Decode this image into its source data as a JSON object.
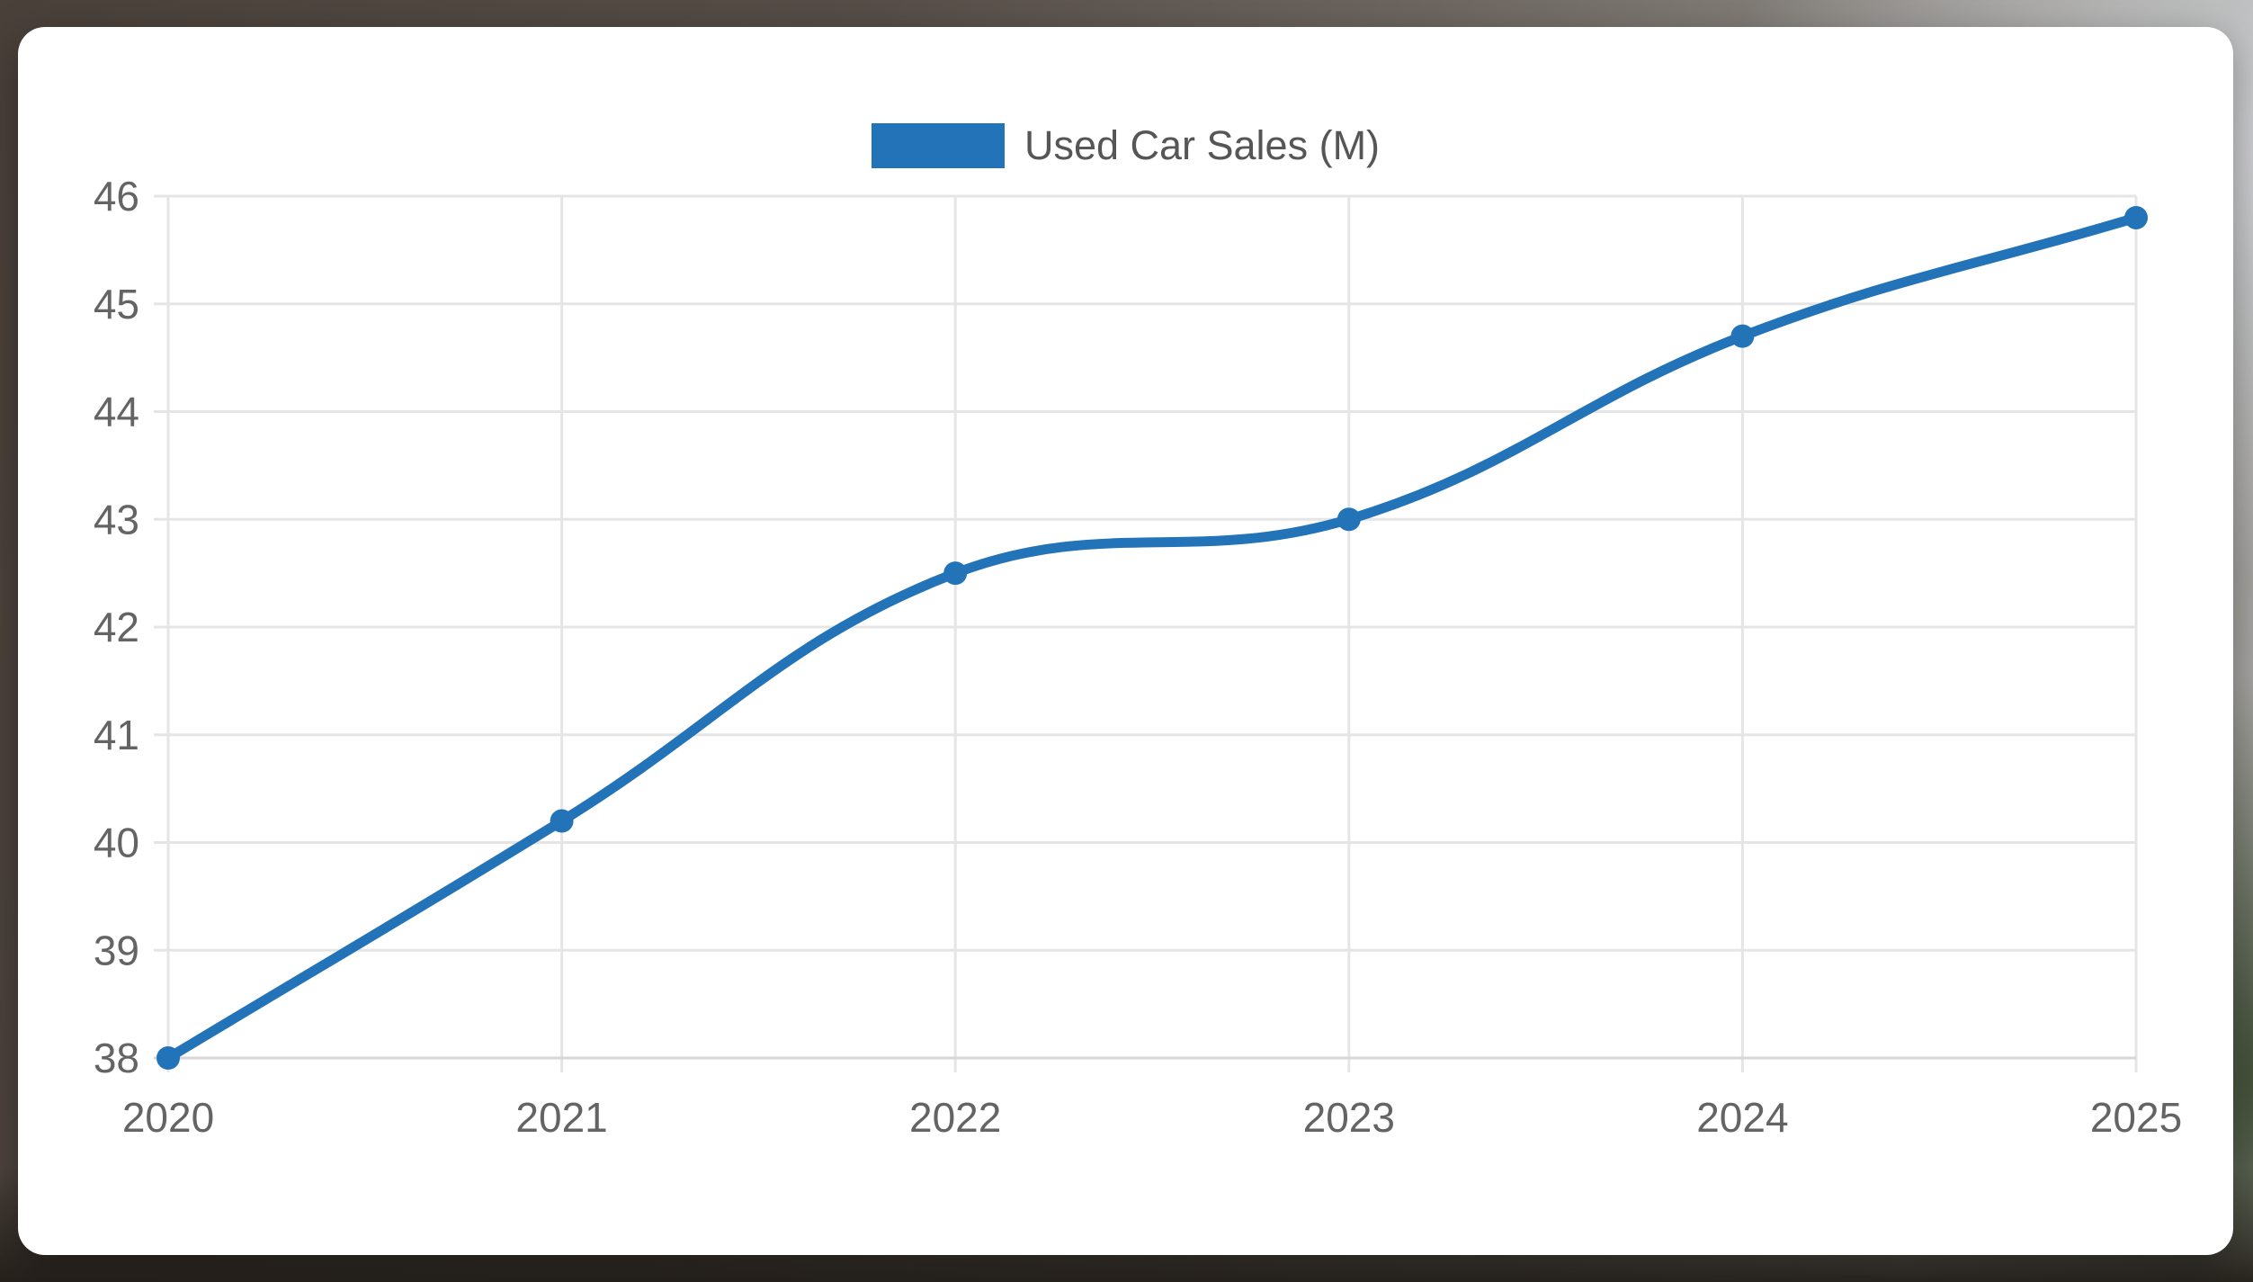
{
  "legend": {
    "label": "Used Car Sales (M)",
    "swatch_color": "#2273b8"
  },
  "chart_data": {
    "type": "line",
    "title": "",
    "xlabel": "",
    "ylabel": "",
    "categories": [
      "2020",
      "2021",
      "2022",
      "2023",
      "2024",
      "2025"
    ],
    "series": [
      {
        "name": "Used Car Sales (M)",
        "color": "#2273b8",
        "values": [
          38.0,
          40.2,
          42.5,
          43.0,
          44.7,
          45.8
        ]
      }
    ],
    "ylim": [
      38,
      46
    ],
    "y_ticks": [
      46,
      45,
      44,
      43,
      42,
      41,
      40,
      39,
      38
    ],
    "grid": true,
    "legend_position": "top",
    "line_tension": 0.4,
    "line_width": 11,
    "point_radius": 13
  },
  "style": {
    "grid_color": "#e5e5e5",
    "axis_line_color": "#d7d7d7",
    "tick_text_color": "#646464",
    "legend_text_color": "#565656",
    "card_background": "#ffffff"
  }
}
